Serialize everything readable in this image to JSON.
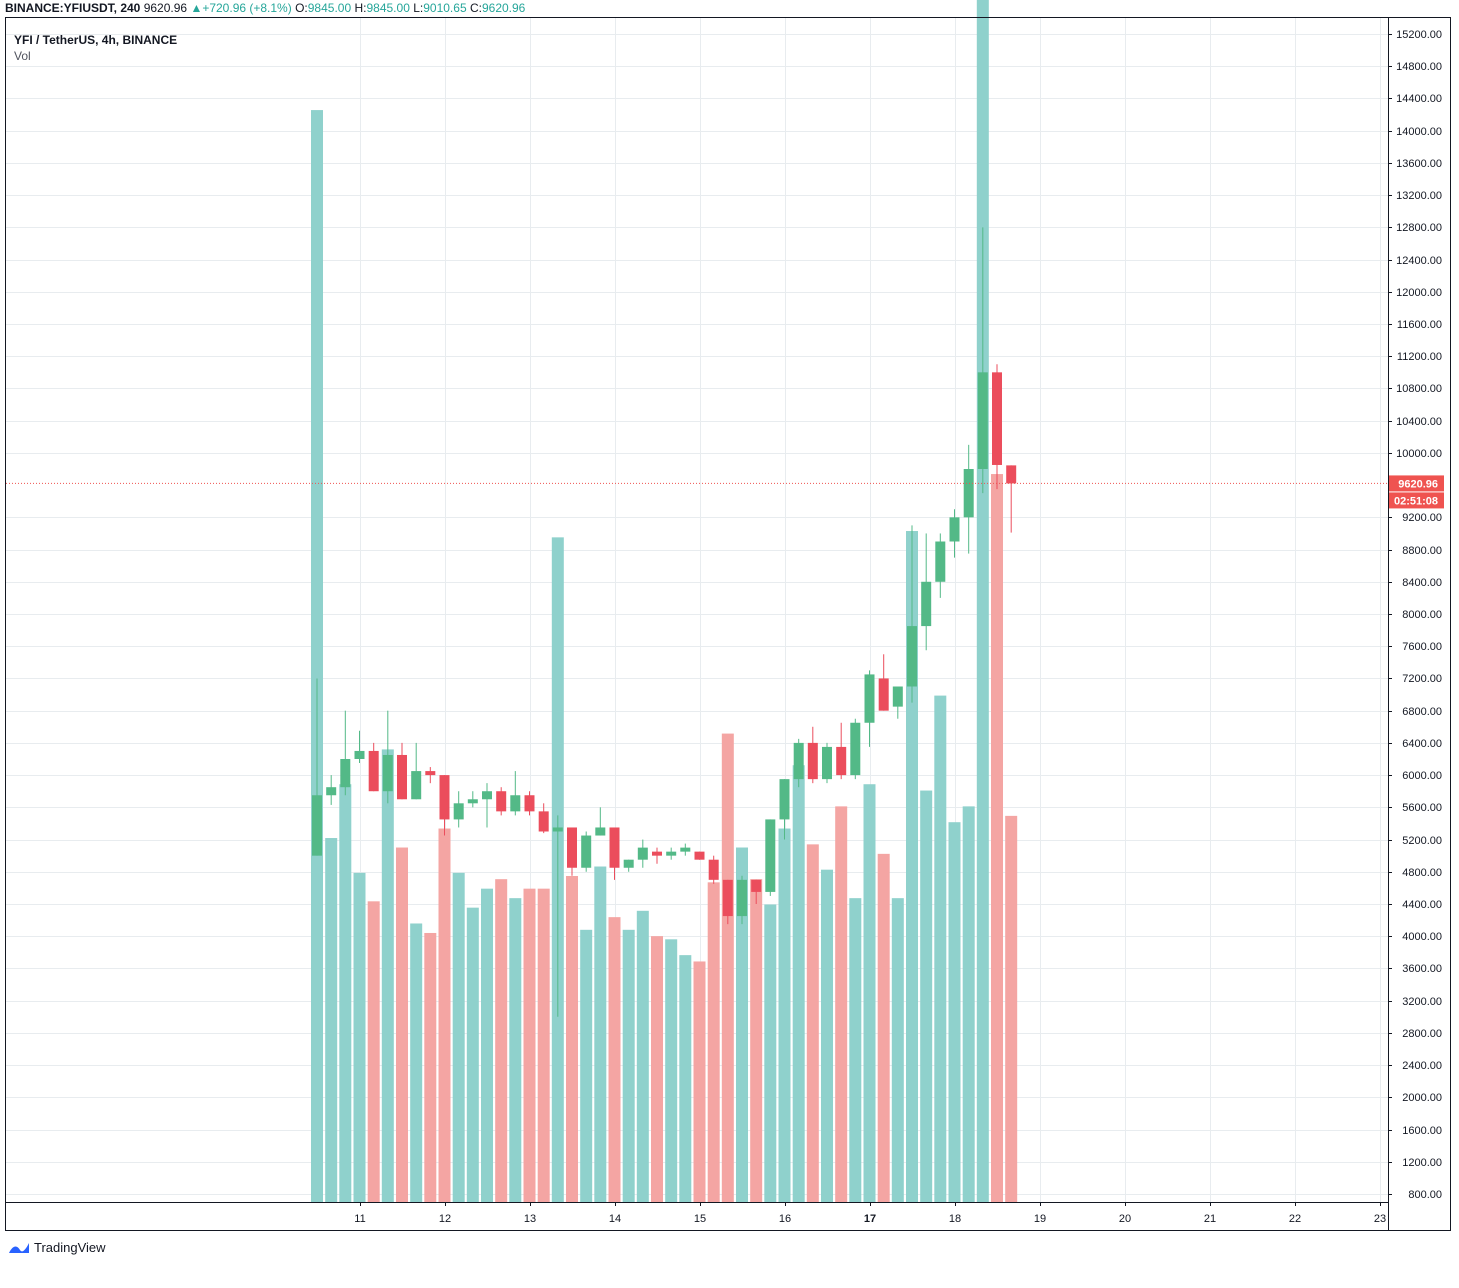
{
  "header": {
    "symbol": "BINANCE:YFIUSDT, 240",
    "last": "9620.96",
    "arrow": "▲",
    "change": "+720.96 (+8.1%)",
    "o_label": "O:",
    "o_value": "9845.00",
    "h_label": "H:",
    "h_value": "9845.00",
    "l_label": "L:",
    "l_value": "9010.65",
    "c_label": "C:",
    "c_value": "9620.96"
  },
  "legend": {
    "title": "YFI / TetherUS, 4h, BINANCE",
    "volume_label": "Vol"
  },
  "price_tag": {
    "value": "9620.96",
    "countdown": "02:51:08"
  },
  "brand": {
    "name": "TradingView"
  },
  "colors": {
    "up": "#26a69a",
    "down": "#ef5350",
    "candle_up": "#53b987",
    "candle_down": "#eb4d5c",
    "vol_up": "#8fd1cc",
    "vol_down": "#f4a5a3",
    "grid": "#e8ecef"
  },
  "chart_data": {
    "type": "candlestick",
    "price_axis": {
      "ylim": [
        600,
        15400
      ],
      "ticks": [
        800,
        1200,
        1600,
        2000,
        2400,
        2800,
        3200,
        3600,
        4000,
        4400,
        4800,
        5200,
        5600,
        6000,
        6400,
        6800,
        7200,
        7600,
        8000,
        8400,
        8800,
        9200,
        10000,
        10400,
        10800,
        11200,
        11600,
        12000,
        12400,
        12800,
        13200,
        13600,
        14000,
        14400,
        14800,
        15200
      ],
      "tick_labels": [
        "800.00",
        "1200.00",
        "1600.00",
        "2000.00",
        "2400.00",
        "2800.00",
        "3200.00",
        "3600.00",
        "4000.00",
        "4400.00",
        "4800.00",
        "5200.00",
        "5600.00",
        "6000.00",
        "6400.00",
        "6800.00",
        "7200.00",
        "7600.00",
        "8000.00",
        "8400.00",
        "8800.00",
        "9200.00",
        "10000.00",
        "10400.00",
        "10800.00",
        "11200.00",
        "11600.00",
        "12000.00",
        "12400.00",
        "12800.00",
        "13200.00",
        "13600.00",
        "14000.00",
        "14400.00",
        "14800.00",
        "15200.00"
      ]
    },
    "x_axis": {
      "labels": [
        "11",
        "12",
        "13",
        "14",
        "15",
        "16",
        "17",
        "18",
        "19",
        "20",
        "21",
        "22",
        "23"
      ],
      "bold": [
        "17"
      ],
      "day_start": 10.5,
      "day_end": 23.05
    },
    "last_price": 9620.96,
    "candles": [
      {
        "t": 10.5,
        "o": 5000,
        "h": 7200,
        "l": 5000,
        "c": 5750,
        "v": 3450
      },
      {
        "t": 10.667,
        "o": 5750,
        "h": 6000,
        "l": 5630,
        "c": 5850,
        "v": 1150
      },
      {
        "t": 10.833,
        "o": 5850,
        "h": 6800,
        "l": 5750,
        "c": 6200,
        "v": 1320
      },
      {
        "t": 11.0,
        "o": 6200,
        "h": 6550,
        "l": 6150,
        "c": 6300,
        "v": 1040
      },
      {
        "t": 11.167,
        "o": 6300,
        "h": 6400,
        "l": 5800,
        "c": 5800,
        "v": 950
      },
      {
        "t": 11.333,
        "o": 5800,
        "h": 6800,
        "l": 5650,
        "c": 6250,
        "v": 1430
      },
      {
        "t": 11.5,
        "o": 6250,
        "h": 6400,
        "l": 5700,
        "c": 5700,
        "v": 1120
      },
      {
        "t": 11.667,
        "o": 5700,
        "h": 6400,
        "l": 5700,
        "c": 6050,
        "v": 880
      },
      {
        "t": 11.833,
        "o": 6050,
        "h": 6100,
        "l": 5900,
        "c": 6000,
        "v": 850
      },
      {
        "t": 12.0,
        "o": 6000,
        "h": 6000,
        "l": 5250,
        "c": 5450,
        "v": 1180
      },
      {
        "t": 12.167,
        "o": 5450,
        "h": 5800,
        "l": 5350,
        "c": 5650,
        "v": 1040
      },
      {
        "t": 12.333,
        "o": 5650,
        "h": 5800,
        "l": 5600,
        "c": 5700,
        "v": 930
      },
      {
        "t": 12.5,
        "o": 5700,
        "h": 5900,
        "l": 5350,
        "c": 5800,
        "v": 990
      },
      {
        "t": 12.667,
        "o": 5800,
        "h": 5850,
        "l": 5500,
        "c": 5550,
        "v": 1020
      },
      {
        "t": 12.833,
        "o": 5550,
        "h": 6050,
        "l": 5500,
        "c": 5750,
        "v": 960
      },
      {
        "t": 13.0,
        "o": 5750,
        "h": 5800,
        "l": 5500,
        "c": 5550,
        "v": 990
      },
      {
        "t": 13.167,
        "o": 5550,
        "h": 5650,
        "l": 5280,
        "c": 5300,
        "v": 990
      },
      {
        "t": 13.333,
        "o": 5300,
        "h": 5500,
        "l": 3000,
        "c": 5350,
        "v": 2100
      },
      {
        "t": 13.5,
        "o": 5350,
        "h": 5350,
        "l": 4750,
        "c": 4850,
        "v": 1030
      },
      {
        "t": 13.667,
        "o": 4850,
        "h": 5300,
        "l": 4800,
        "c": 5250,
        "v": 860
      },
      {
        "t": 13.833,
        "o": 5250,
        "h": 5600,
        "l": 5250,
        "c": 5350,
        "v": 1060
      },
      {
        "t": 14.0,
        "o": 5350,
        "h": 5350,
        "l": 4700,
        "c": 4850,
        "v": 900
      },
      {
        "t": 14.167,
        "o": 4850,
        "h": 4950,
        "l": 4800,
        "c": 4950,
        "v": 860
      },
      {
        "t": 14.333,
        "o": 4950,
        "h": 5200,
        "l": 4850,
        "c": 5100,
        "v": 920
      },
      {
        "t": 14.5,
        "o": 5050,
        "h": 5100,
        "l": 4900,
        "c": 5000,
        "v": 840
      },
      {
        "t": 14.667,
        "o": 5000,
        "h": 5100,
        "l": 4950,
        "c": 5050,
        "v": 830
      },
      {
        "t": 14.833,
        "o": 5050,
        "h": 5150,
        "l": 5000,
        "c": 5100,
        "v": 780
      },
      {
        "t": 15.0,
        "o": 5050,
        "h": 5050,
        "l": 4950,
        "c": 4950,
        "v": 760
      },
      {
        "t": 15.167,
        "o": 4950,
        "h": 5000,
        "l": 4650,
        "c": 4700,
        "v": 1010
      },
      {
        "t": 15.333,
        "o": 4700,
        "h": 4700,
        "l": 4150,
        "c": 4250,
        "v": 1480
      },
      {
        "t": 15.5,
        "o": 4250,
        "h": 4750,
        "l": 4150,
        "c": 4700,
        "v": 1120
      },
      {
        "t": 15.667,
        "o": 4700,
        "h": 4700,
        "l": 4400,
        "c": 4550,
        "v": 1020
      },
      {
        "t": 15.833,
        "o": 4550,
        "h": 5450,
        "l": 4500,
        "c": 5450,
        "v": 940
      },
      {
        "t": 16.0,
        "o": 5450,
        "h": 5950,
        "l": 5200,
        "c": 5950,
        "v": 1180
      },
      {
        "t": 16.167,
        "o": 5950,
        "h": 6450,
        "l": 5850,
        "c": 6400,
        "v": 1380
      },
      {
        "t": 16.333,
        "o": 6400,
        "h": 6600,
        "l": 5900,
        "c": 5950,
        "v": 1130
      },
      {
        "t": 16.5,
        "o": 5950,
        "h": 6400,
        "l": 5900,
        "c": 6350,
        "v": 1050
      },
      {
        "t": 16.667,
        "o": 6350,
        "h": 6650,
        "l": 5950,
        "c": 6000,
        "v": 1250
      },
      {
        "t": 16.833,
        "o": 6000,
        "h": 6700,
        "l": 5950,
        "c": 6650,
        "v": 960
      },
      {
        "t": 17.0,
        "o": 6650,
        "h": 7300,
        "l": 6350,
        "c": 7250,
        "v": 1320
      },
      {
        "t": 17.167,
        "o": 7200,
        "h": 7500,
        "l": 6800,
        "c": 6800,
        "v": 1100
      },
      {
        "t": 17.333,
        "o": 6850,
        "h": 7100,
        "l": 6700,
        "c": 7100,
        "v": 960
      },
      {
        "t": 17.5,
        "o": 7100,
        "h": 9100,
        "l": 6900,
        "c": 7850,
        "v": 2120
      },
      {
        "t": 17.667,
        "o": 7850,
        "h": 9000,
        "l": 7550,
        "c": 8400,
        "v": 1300
      },
      {
        "t": 17.833,
        "o": 8400,
        "h": 9000,
        "l": 8200,
        "c": 8900,
        "v": 1600
      },
      {
        "t": 18.0,
        "o": 8900,
        "h": 9300,
        "l": 8700,
        "c": 9200,
        "v": 1200
      },
      {
        "t": 18.167,
        "o": 9200,
        "h": 10100,
        "l": 8750,
        "c": 9800,
        "v": 1250
      },
      {
        "t": 18.333,
        "o": 9800,
        "h": 12800,
        "l": 9500,
        "c": 11000,
        "v": 4350
      },
      {
        "t": 18.5,
        "o": 11000,
        "h": 11100,
        "l": 9550,
        "c": 9850,
        "v": 2300
      },
      {
        "t": 18.667,
        "o": 9845,
        "h": 9845,
        "l": 9010.65,
        "c": 9620.96,
        "v": 1220
      }
    ]
  }
}
